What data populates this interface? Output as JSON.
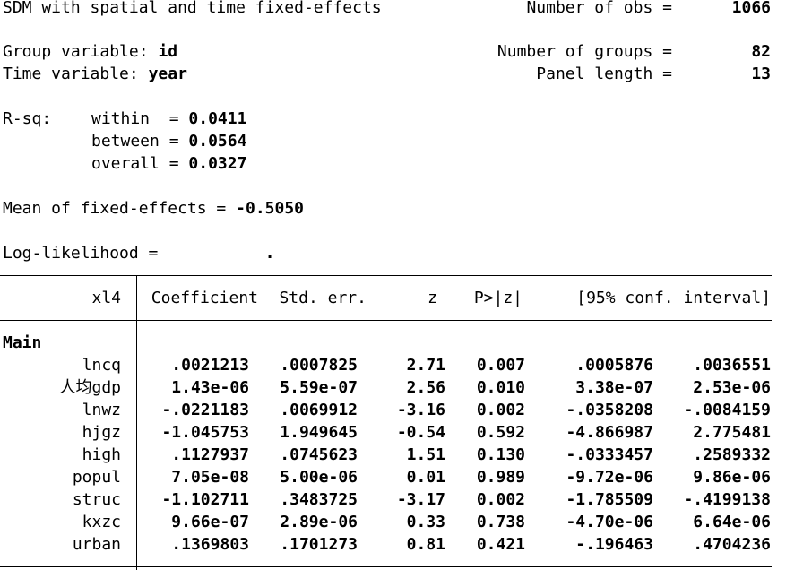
{
  "header": {
    "title": "SDM with spatial and time fixed-effects",
    "obs_label": "Number of obs =",
    "obs_value": "1066",
    "group_var_label": "Group variable:",
    "group_var": "id",
    "groups_label": "Number of groups =",
    "groups_value": "82",
    "time_var_label": "Time variable:",
    "time_var": "year",
    "panel_label": "Panel length =",
    "panel_value": "13"
  },
  "rsq": {
    "label": "R-sq:",
    "rows": [
      {
        "label": "within  =",
        "value": "0.0411"
      },
      {
        "label": "between =",
        "value": "0.0564"
      },
      {
        "label": "overall =",
        "value": "0.0327"
      }
    ]
  },
  "mean_fe": {
    "label": "Mean of fixed-effects =",
    "value": "-0.5050"
  },
  "loglik": {
    "label": "Log-likelihood =",
    "value": "."
  },
  "table": {
    "columns": [
      "xl4",
      "Coefficient",
      "Std. err.",
      "z",
      "P>|z|",
      "[95% conf. interval]"
    ],
    "equation": "Main",
    "rows": [
      [
        "lncq",
        ".0021213",
        ".0007825",
        "2.71",
        "0.007",
        ".0005876",
        ".0036551"
      ],
      [
        "人均gdp",
        "1.43e-06",
        "5.59e-07",
        "2.56",
        "0.010",
        "3.38e-07",
        "2.53e-06"
      ],
      [
        "lnwz",
        "-.0221183",
        ".0069912",
        "-3.16",
        "0.002",
        "-.0358208",
        "-.0084159"
      ],
      [
        "hjgz",
        "-1.045753",
        "1.949645",
        "-0.54",
        "0.592",
        "-4.866987",
        "2.775481"
      ],
      [
        "high",
        ".1127937",
        ".0745623",
        "1.51",
        "0.130",
        "-.0333457",
        ".2589332"
      ],
      [
        "popul",
        "7.05e-08",
        "5.00e-06",
        "0.01",
        "0.989",
        "-9.72e-06",
        "9.86e-06"
      ],
      [
        "struc",
        "-1.102711",
        ".3483725",
        "-3.17",
        "0.002",
        "-1.785509",
        "-.4199138"
      ],
      [
        "kxzc",
        "9.66e-07",
        "2.89e-06",
        "0.33",
        "0.738",
        "-4.70e-06",
        "6.64e-06"
      ],
      [
        "urban",
        ".1369803",
        ".1701273",
        "0.81",
        "0.421",
        "-.196463",
        ".4704236"
      ]
    ]
  }
}
